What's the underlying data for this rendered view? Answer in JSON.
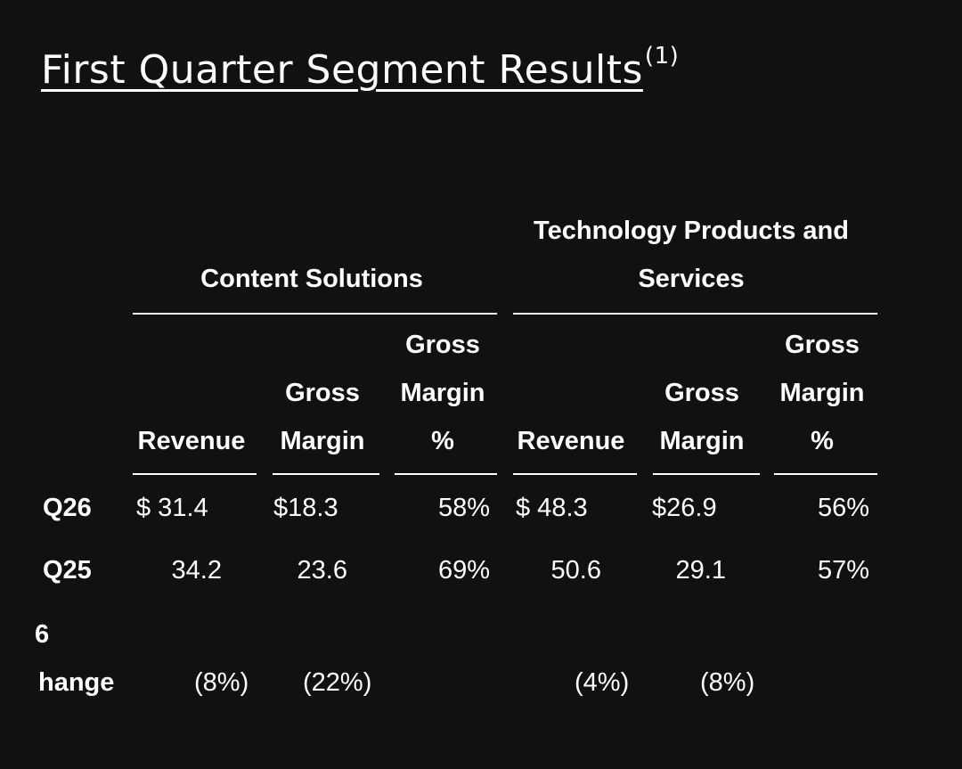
{
  "title": {
    "text": "First Quarter Segment Results",
    "footnote": "(1)"
  },
  "segments": {
    "content": "Content Solutions",
    "tech_line1": "Technology Products and",
    "tech_line2": "Services"
  },
  "columns": {
    "revenue": "Revenue",
    "gross": "Gross",
    "margin": "Margin",
    "pct": "%"
  },
  "rows": [
    {
      "label": "Q26",
      "cs_revenue": "$ 31.4",
      "cs_gross_margin": "$18.3",
      "cs_gm_pct": "58%",
      "tps_revenue": "$ 48.3",
      "tps_gross_margin": "$26.9",
      "tps_gm_pct": "56%"
    },
    {
      "label": "Q25",
      "cs_revenue": "34.2",
      "cs_gross_margin": "23.6",
      "cs_gm_pct": "69%",
      "tps_revenue": "50.6",
      "tps_gross_margin": "29.1",
      "tps_gm_pct": "57%"
    }
  ],
  "change_row": {
    "label_line1": "6",
    "label_line2": "hange",
    "cs_revenue": "(8%)",
    "cs_gross_margin": "(22%)",
    "tps_revenue": "(4%)",
    "tps_gross_margin": "(8%)"
  }
}
